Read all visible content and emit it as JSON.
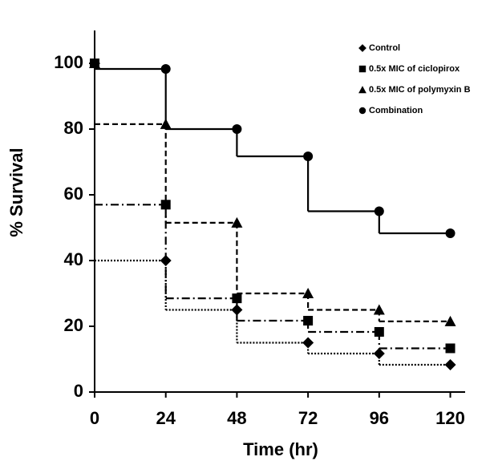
{
  "chart_data": {
    "type": "step",
    "xlabel": "Time (hr)",
    "ylabel": "% Survival",
    "x": [
      0,
      24,
      48,
      72,
      96,
      120
    ],
    "series": [
      {
        "name": "Control",
        "color": "#000000",
        "marker": "diamond",
        "line_style": "dotted",
        "values": [
          100,
          40,
          25,
          15,
          11.7,
          8.3
        ]
      },
      {
        "name": "0.5x MIC of ciclopirox",
        "color": "#000000",
        "marker": "square",
        "line_style": "dashdot",
        "values": [
          100,
          57,
          28.5,
          21.7,
          18.3,
          13.3
        ]
      },
      {
        "name": "0.5x MIC of polymyxin B",
        "color": "#000000",
        "marker": "triangle",
        "line_style": "dashed",
        "values": [
          100,
          81.5,
          51.5,
          30,
          25,
          21.5
        ]
      },
      {
        "name": "Combination",
        "color": "#000000",
        "marker": "circle",
        "line_style": "solid",
        "values": [
          100,
          98.3,
          80,
          71.7,
          55,
          48.3
        ]
      }
    ],
    "xlim": [
      0,
      125
    ],
    "ylim": [
      0,
      110
    ],
    "xticks": [
      0,
      24,
      48,
      72,
      96,
      120
    ],
    "yticks": [
      0,
      20,
      40,
      60,
      80,
      100
    ],
    "legend": "top-right",
    "grid": false
  }
}
